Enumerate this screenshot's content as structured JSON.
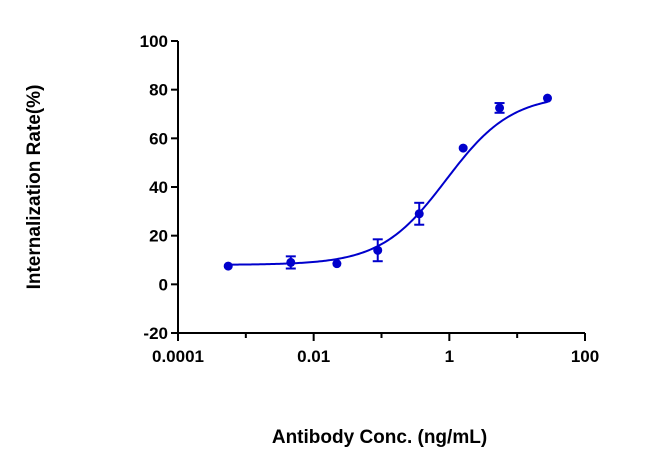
{
  "chart_data": {
    "type": "scatter",
    "xlabel": "Antibody Conc. (ng/mL)",
    "ylabel": "Internalization Rate(%)",
    "x_scale": "log",
    "xlim": [
      0.0001,
      100
    ],
    "ylim": [
      -20,
      100
    ],
    "x_ticks": [
      "0.0001",
      "0.01",
      "1",
      "100"
    ],
    "y_ticks": [
      "-20",
      "0",
      "20",
      "40",
      "60",
      "80",
      "100"
    ],
    "grid": false,
    "legend": "none",
    "color": "#0000CC",
    "series": [
      {
        "marker": "circle",
        "points": [
          {
            "x": 0.00055,
            "y": 7.5,
            "err": 0.5
          },
          {
            "x": 0.0046,
            "y": 9.0,
            "err": 2.5
          },
          {
            "x": 0.022,
            "y": 8.5,
            "err": 0.5
          },
          {
            "x": 0.088,
            "y": 14.0,
            "err": 4.5
          },
          {
            "x": 0.36,
            "y": 29.0,
            "err": 4.5
          },
          {
            "x": 1.6,
            "y": 56.0,
            "err": 0.8
          },
          {
            "x": 5.5,
            "y": 72.5,
            "err": 2.0
          },
          {
            "x": 28,
            "y": 76.5,
            "err": 0.8
          }
        ]
      }
    ],
    "fit": {
      "model": "4PL",
      "bottom": 8,
      "top": 78,
      "ec50": 0.9,
      "hill": 0.9,
      "x_range": [
        0.00055,
        28
      ]
    }
  }
}
